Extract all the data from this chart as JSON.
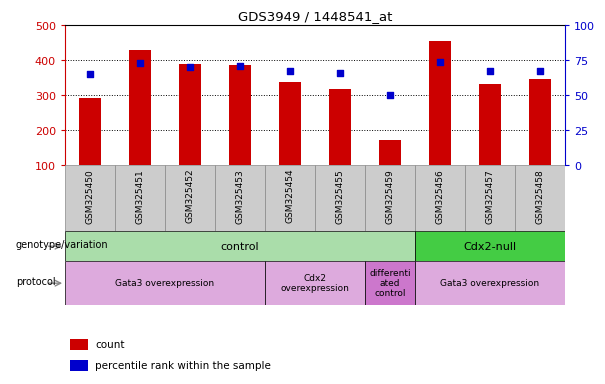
{
  "title": "GDS3949 / 1448541_at",
  "samples": [
    "GSM325450",
    "GSM325451",
    "GSM325452",
    "GSM325453",
    "GSM325454",
    "GSM325455",
    "GSM325459",
    "GSM325456",
    "GSM325457",
    "GSM325458"
  ],
  "counts": [
    293,
    430,
    390,
    387,
    338,
    318,
    172,
    455,
    332,
    347
  ],
  "percentile_ranks": [
    65,
    73,
    70,
    71,
    67,
    66,
    50,
    74,
    67,
    67
  ],
  "ylim_left": [
    100,
    500
  ],
  "ylim_right": [
    0,
    100
  ],
  "yticks_left": [
    100,
    200,
    300,
    400,
    500
  ],
  "yticks_right": [
    0,
    25,
    50,
    75,
    100
  ],
  "bar_color": "#cc0000",
  "dot_color": "#0000cc",
  "bar_width": 0.45,
  "left_axis_color": "#cc0000",
  "right_axis_color": "#0000cc",
  "grid_dotted_at": [
    200,
    300,
    400
  ],
  "genotype_groups": [
    {
      "label": "control",
      "start": 0,
      "end": 6,
      "color": "#aaddaa"
    },
    {
      "label": "Cdx2-null",
      "start": 7,
      "end": 9,
      "color": "#44cc44"
    }
  ],
  "protocol_groups": [
    {
      "label": "Gata3 overexpression",
      "start": 0,
      "end": 3,
      "color": "#ddaadd"
    },
    {
      "label": "Cdx2\noverexpression",
      "start": 4,
      "end": 5,
      "color": "#ddaadd"
    },
    {
      "label": "differenti\nated\ncontrol",
      "start": 6,
      "end": 6,
      "color": "#cc77cc"
    },
    {
      "label": "Gata3 overexpression",
      "start": 7,
      "end": 9,
      "color": "#ddaadd"
    }
  ],
  "label_geno": "genotype/variation",
  "label_proto": "protocol",
  "legend_items": [
    {
      "color": "#cc0000",
      "label": "count"
    },
    {
      "color": "#0000cc",
      "label": "percentile rank within the sample"
    }
  ],
  "ticklabel_area_color": "#cccccc",
  "ticklabel_area_edgecolor": "#888888"
}
